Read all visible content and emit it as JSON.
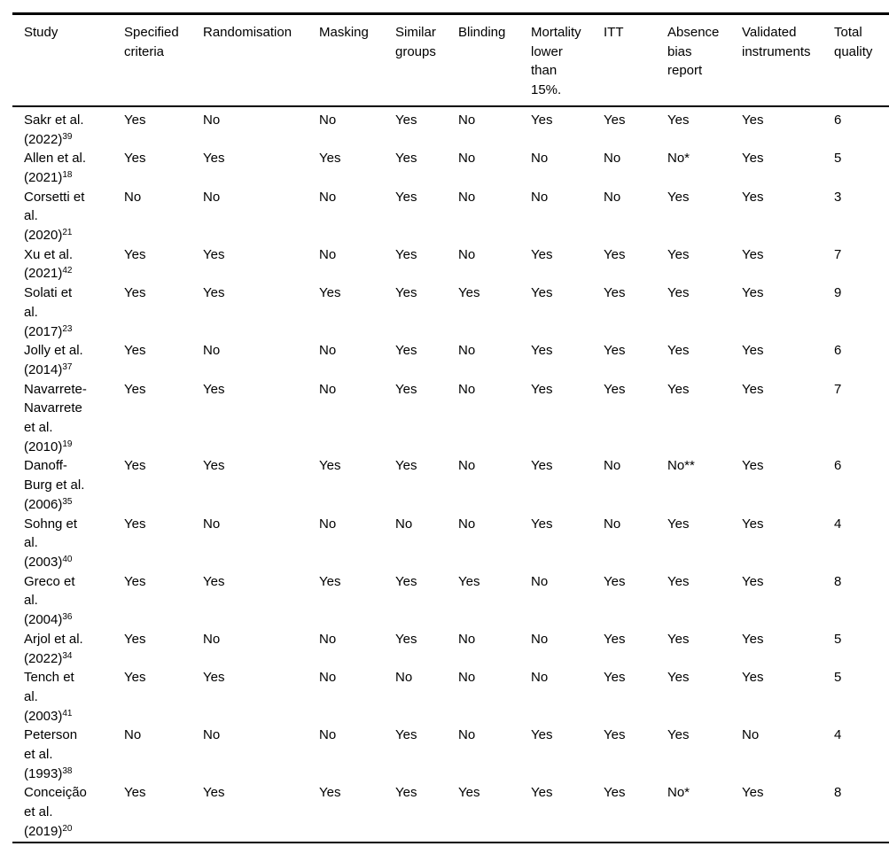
{
  "table": {
    "columns": [
      "Study",
      "Specified criteria",
      "Randomisation",
      "Masking",
      "Similar groups",
      "Blinding",
      "Mortality lower than 15%.",
      "ITT",
      "Absence bias report",
      "Validated instruments",
      "Total quality"
    ],
    "rows": [
      {
        "study": "Sakr et al. (2022)",
        "ref": "39",
        "values": [
          "Yes",
          "No",
          "No",
          "Yes",
          "No",
          "Yes",
          "Yes",
          "Yes",
          "Yes",
          "6"
        ]
      },
      {
        "study": "Allen et al. (2021)",
        "ref": "18",
        "values": [
          "Yes",
          "Yes",
          "Yes",
          "Yes",
          "No",
          "No",
          "No",
          "No*",
          "Yes",
          "5"
        ]
      },
      {
        "study": "Corsetti et al. (2020)",
        "ref": "21",
        "values": [
          "No",
          "No",
          "No",
          "Yes",
          "No",
          "No",
          "No",
          "Yes",
          "Yes",
          "3"
        ]
      },
      {
        "study": "Xu et al. (2021)",
        "ref": "42",
        "values": [
          "Yes",
          "Yes",
          "No",
          "Yes",
          "No",
          "Yes",
          "Yes",
          "Yes",
          "Yes",
          "7"
        ]
      },
      {
        "study": "Solati et al. (2017)",
        "ref": "23",
        "values": [
          "Yes",
          "Yes",
          "Yes",
          "Yes",
          "Yes",
          "Yes",
          "Yes",
          "Yes",
          "Yes",
          "9"
        ]
      },
      {
        "study": "Jolly et al. (2014)",
        "ref": "37",
        "values": [
          "Yes",
          "No",
          "No",
          "Yes",
          "No",
          "Yes",
          "Yes",
          "Yes",
          "Yes",
          "6"
        ]
      },
      {
        "study": "Navarrete-Navarrete et al. (2010)",
        "ref": "19",
        "values": [
          "Yes",
          "Yes",
          "No",
          "Yes",
          "No",
          "Yes",
          "Yes",
          "Yes",
          "Yes",
          "7"
        ]
      },
      {
        "study": "Danoff-Burg et al. (2006)",
        "ref": "35",
        "values": [
          "Yes",
          "Yes",
          "Yes",
          "Yes",
          "No",
          "Yes",
          "No",
          "No**",
          "Yes",
          "6"
        ]
      },
      {
        "study": "Sohng et al. (2003)",
        "ref": "40",
        "values": [
          "Yes",
          "No",
          "No",
          "No",
          "No",
          "Yes",
          "No",
          "Yes",
          "Yes",
          "4"
        ]
      },
      {
        "study": "Greco et al. (2004)",
        "ref": "36",
        "values": [
          "Yes",
          "Yes",
          "Yes",
          "Yes",
          "Yes",
          "No",
          "Yes",
          "Yes",
          "Yes",
          "8"
        ]
      },
      {
        "study": "Arjol et al. (2022)",
        "ref": "34",
        "values": [
          "Yes",
          "No",
          "No",
          "Yes",
          "No",
          "No",
          "Yes",
          "Yes",
          "Yes",
          "5"
        ]
      },
      {
        "study": "Tench et al. (2003)",
        "ref": "41",
        "values": [
          "Yes",
          "Yes",
          "No",
          "No",
          "No",
          "No",
          "Yes",
          "Yes",
          "Yes",
          "5"
        ]
      },
      {
        "study": "Peterson et al. (1993)",
        "ref": "38",
        "values": [
          "No",
          "No",
          "No",
          "Yes",
          "No",
          "Yes",
          "Yes",
          "Yes",
          "No",
          "4"
        ]
      },
      {
        "study": "Conceição et al. (2019)",
        "ref": "20",
        "values": [
          "Yes",
          "Yes",
          "Yes",
          "Yes",
          "Yes",
          "Yes",
          "Yes",
          "No*",
          "Yes",
          "8"
        ]
      }
    ]
  }
}
